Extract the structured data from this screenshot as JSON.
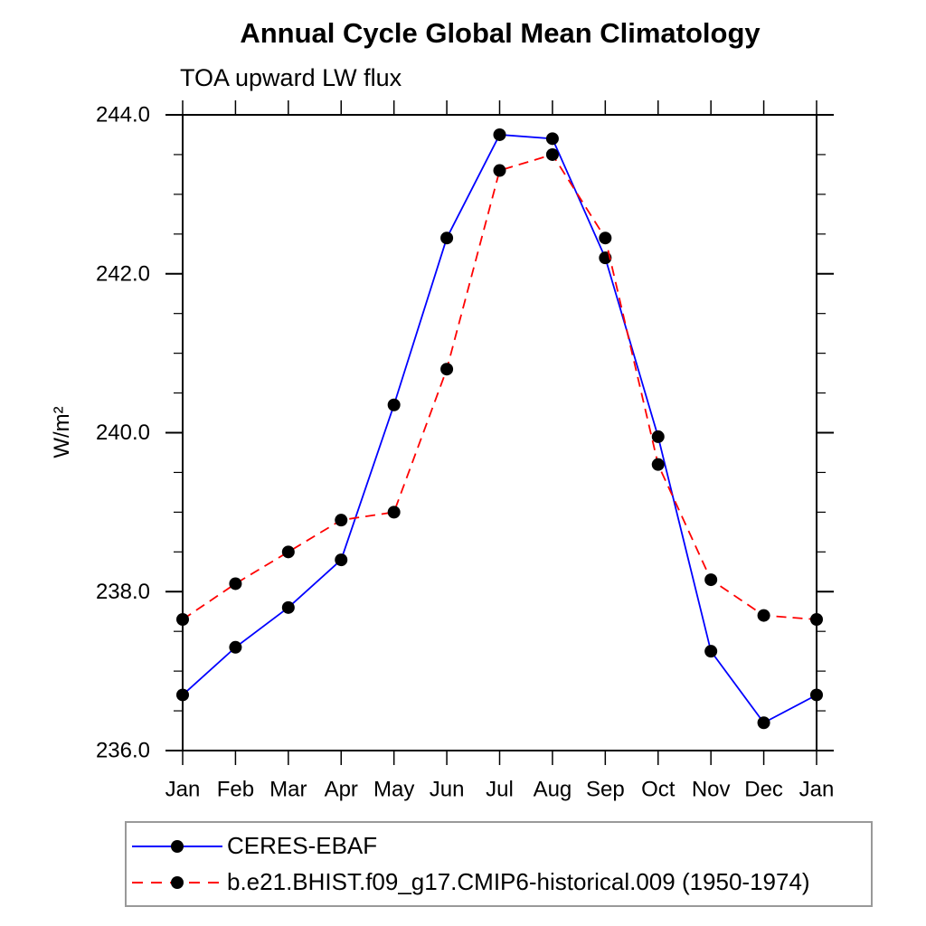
{
  "chart_data": {
    "type": "line",
    "title": "Annual Cycle Global Mean Climatology",
    "subtitle": "TOA upward LW flux",
    "ylabel": "W/m²",
    "xlabel": "",
    "categories": [
      "Jan",
      "Feb",
      "Mar",
      "Apr",
      "May",
      "Jun",
      "Jul",
      "Aug",
      "Sep",
      "Oct",
      "Nov",
      "Dec",
      "Jan"
    ],
    "ylim": [
      236.0,
      244.0
    ],
    "ytick_major": 2.0,
    "ytick_minor": 0.5,
    "ytick_labels": [
      "236.0",
      "238.0",
      "240.0",
      "242.0",
      "244.0"
    ],
    "grid": false,
    "legend_position": "bottom-left-box",
    "axis_color": "#000000",
    "marker_color": "#000000",
    "series": [
      {
        "name": "CERES-EBAF",
        "color": "#0000ff",
        "line_style": "solid",
        "marker": "filled-circle",
        "marker_color": "#000000",
        "values": [
          236.7,
          237.3,
          237.8,
          238.4,
          240.35,
          242.45,
          243.75,
          243.7,
          242.2,
          239.95,
          237.25,
          236.35,
          236.7
        ]
      },
      {
        "name": "b.e21.BHIST.f09_g17.CMIP6-historical.009 (1950-1974)",
        "color": "#ff0000",
        "line_style": "dashed",
        "marker": "filled-circle",
        "marker_color": "#000000",
        "values": [
          237.65,
          238.1,
          238.5,
          238.9,
          239.0,
          240.8,
          243.3,
          243.5,
          242.45,
          239.6,
          238.15,
          237.7,
          237.65
        ]
      }
    ]
  }
}
